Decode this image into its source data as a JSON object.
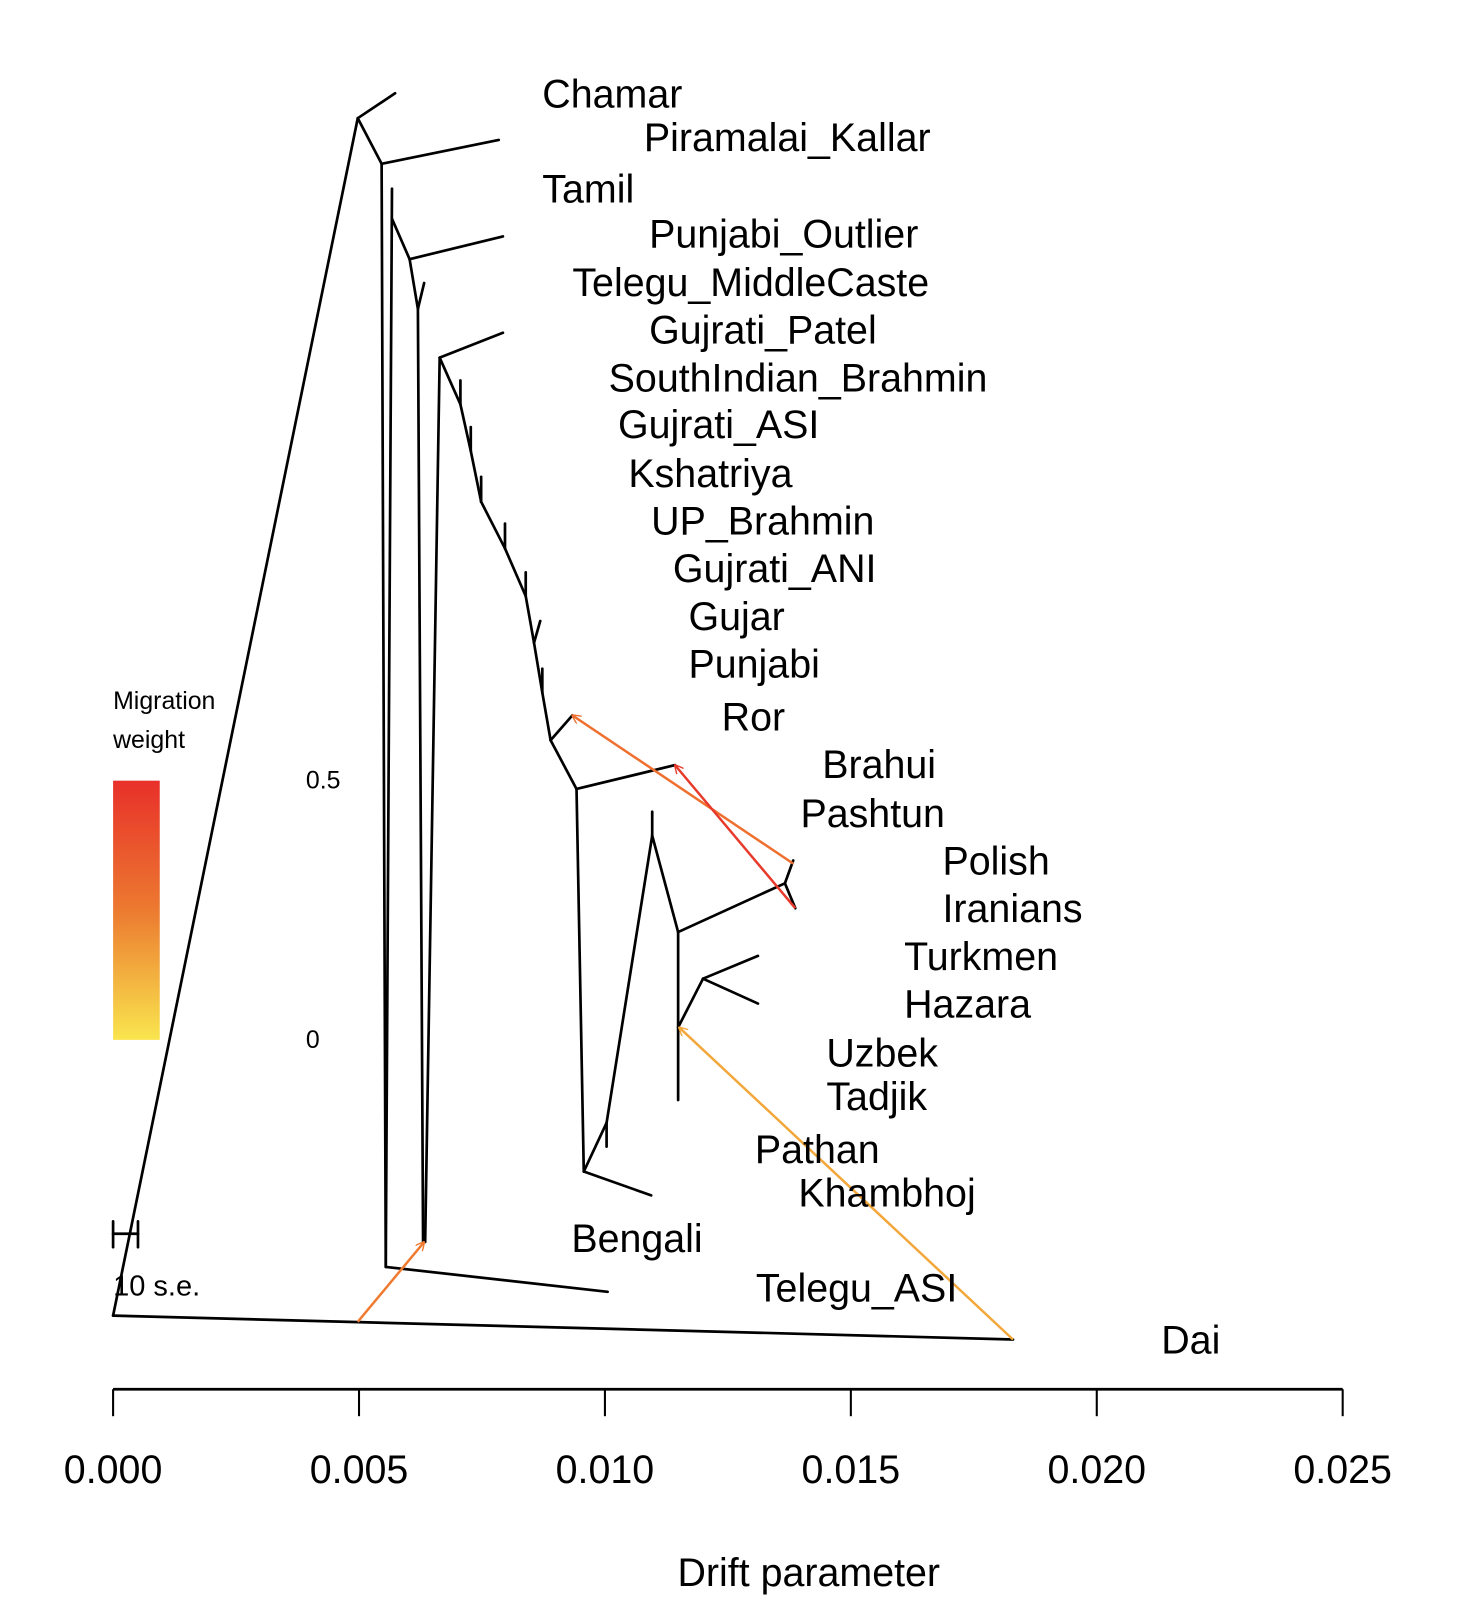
{
  "chart_data": {
    "type": "tree",
    "title": "",
    "xlabel": "Drift parameter",
    "xlim": [
      0,
      0.025
    ],
    "x_ticks": [
      "0.000",
      "0.005",
      "0.010",
      "0.015",
      "0.020",
      "0.025"
    ],
    "x_tick_values": [
      0,
      0.005,
      0.01,
      0.015,
      0.02,
      0.025
    ],
    "leaves": [
      "Chamar",
      "Piramalai_Kallar",
      "Tamil",
      "Punjabi_Outlier",
      "Telegu_MiddleCaste",
      "Gujrati_Patel",
      "SouthIndian_Brahmin",
      "Gujrati_ASI",
      "Kshatriya",
      "UP_Brahmin",
      "Gujrati_ANI",
      "Gujar",
      "Punjabi",
      "Ror",
      "Brahui",
      "Pashtun",
      "Polish",
      "Iranians",
      "Turkmen",
      "Hazara",
      "Uzbek",
      "Tadjik",
      "Pathan",
      "Khambhoj",
      "Bengali",
      "Telegu_ASI",
      "Dai"
    ],
    "migration_edges": [
      {
        "from": "Polish",
        "to": "Ror",
        "weight": 0.38,
        "color": "#ef6f2e"
      },
      {
        "from": "Iranians",
        "to": "Brahui",
        "weight": 0.48,
        "color": "#e8392a"
      },
      {
        "from": "Dai",
        "to": "Hazara/Turkmen ancestor",
        "weight": 0.17,
        "color": "#f3a73a"
      },
      {
        "from": "Dai-root edge",
        "to": "Telegu_MiddleCaste ancestor",
        "weight": 0.33,
        "color": "#f07a2f"
      }
    ],
    "legend": {
      "title_line1": "Migration",
      "title_line2": "weight",
      "max_label": "0.5",
      "min_label": "0",
      "color_high": "#e8302a",
      "color_low": "#f9e54e"
    },
    "scale_bar_label": "10 s.e."
  }
}
